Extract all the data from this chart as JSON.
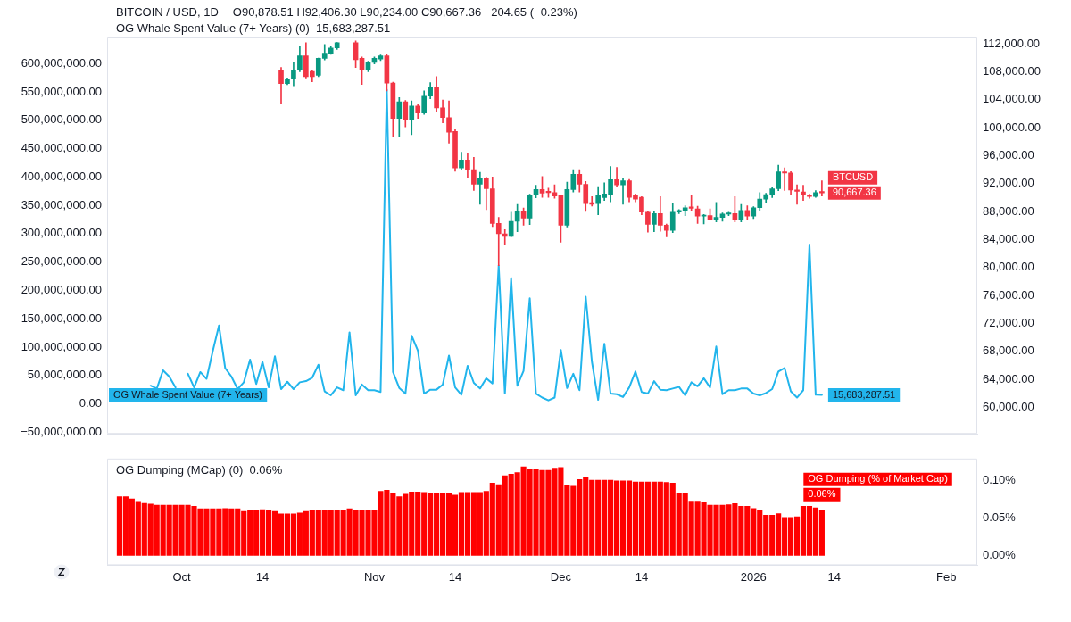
{
  "chart_data": [
    {
      "type": "candlestick",
      "title": "BITCOIN / USD, 1D",
      "annotations": [
        "O90,878.51 H92,406.30 L90,234.00 C90,667.36 −204.65 (−0.23%)",
        "OG Whale Spent Value (7+ Years) (0)  15,683,287.51"
      ],
      "x": [
        "2025-09-26",
        "2025-09-27",
        "2025-09-28",
        "2025-09-29",
        "2025-09-30",
        "2025-10-01",
        "2025-10-02",
        "2025-10-03",
        "2025-10-04",
        "2025-10-05",
        "2025-10-06",
        "2025-10-07",
        "2025-10-08",
        "2025-10-09",
        "2025-10-10",
        "2025-10-11",
        "2025-10-12",
        "2025-10-13",
        "2025-10-14",
        "2025-10-15",
        "2025-10-16",
        "2025-10-17",
        "2025-10-18",
        "2025-10-19",
        "2025-10-20",
        "2025-10-21",
        "2025-10-22",
        "2025-10-23",
        "2025-10-24",
        "2025-10-25",
        "2025-10-26",
        "2025-10-27",
        "2025-10-28",
        "2025-10-29",
        "2025-10-30",
        "2025-10-31",
        "2025-11-01",
        "2025-11-02",
        "2025-11-03",
        "2025-11-04",
        "2025-11-05",
        "2025-11-06",
        "2025-11-07",
        "2025-11-08",
        "2025-11-09",
        "2025-11-10",
        "2025-11-11",
        "2025-11-12",
        "2025-11-13",
        "2025-11-14",
        "2025-11-15",
        "2025-11-16",
        "2025-11-17",
        "2025-11-18",
        "2025-11-19",
        "2025-11-20",
        "2025-11-21",
        "2025-11-22",
        "2025-11-23",
        "2025-11-24",
        "2025-11-25",
        "2025-11-26",
        "2025-11-27",
        "2025-11-28",
        "2025-11-29",
        "2025-11-30",
        "2025-12-01",
        "2025-12-02",
        "2025-12-03",
        "2025-12-04",
        "2025-12-05",
        "2025-12-06",
        "2025-12-07",
        "2025-12-08",
        "2025-12-09",
        "2025-12-10",
        "2025-12-11",
        "2025-12-12",
        "2025-12-13",
        "2025-12-14",
        "2025-12-15",
        "2025-12-16",
        "2025-12-17",
        "2025-12-18",
        "2025-12-19",
        "2025-12-20",
        "2025-12-21",
        "2025-12-22",
        "2025-12-23",
        "2025-12-24",
        "2025-12-25",
        "2025-12-26",
        "2025-12-27",
        "2025-12-28",
        "2025-12-29",
        "2025-12-30",
        "2025-12-31",
        "2026-01-01",
        "2026-01-02",
        "2026-01-03",
        "2026-01-04",
        "2026-01-05",
        "2026-01-06",
        "2026-01-07",
        "2026-01-08",
        "2026-01-09",
        "2026-01-10",
        "2026-01-11",
        "2026-01-12"
      ],
      "series": [
        {
          "name": "BTCUSD",
          "axis": "y2",
          "ohlc": [
            null,
            null,
            null,
            null,
            null,
            null,
            null,
            null,
            null,
            null,
            null,
            null,
            null,
            null,
            null,
            null,
            null,
            null,
            null,
            null,
            null,
            [
              108233,
              108606,
              103386,
              106294
            ],
            [
              106294,
              107100,
              106150,
              106928
            ],
            [
              107040,
              109352,
              105996,
              108233
            ],
            [
              108233,
              111590,
              108000,
              110284
            ],
            [
              110284,
              112149,
              107100,
              107301
            ],
            [
              108047,
              108200,
              106555,
              107301
            ],
            [
              107488,
              109950,
              107300,
              109911
            ],
            [
              109911,
              111900,
              109700,
              110657
            ],
            [
              110657,
              111600,
              110500,
              111403
            ],
            [
              111403,
              112200,
              111200,
              112149
            ],
            null,
            null,
            [
              112149,
              112400,
              108606,
              109725
            ],
            [
              109911,
              110100,
              106182,
              108233
            ],
            [
              108233,
              109500,
              108000,
              109352
            ],
            [
              109352,
              110100,
              109100,
              109911
            ],
            [
              109800,
              110400,
              109600,
              110284
            ],
            [
              110284,
              110500,
              105250,
              106369
            ],
            [
              106369,
              106500,
              98724,
              101335
            ],
            [
              101335,
              104318,
              98724,
              103684
            ],
            [
              103684,
              103900,
              100104,
              101074
            ],
            [
              101074,
              103833,
              98985,
              103087
            ],
            [
              103087,
              103300,
              101335,
              102080
            ],
            [
              102080,
              105250,
              101900,
              104504
            ],
            [
              104504,
              106443,
              104131,
              105735
            ],
            [
              105735,
              107301,
              102267,
              102826
            ],
            [
              102826,
              103945,
              100701,
              101446
            ],
            [
              101446,
              103833,
              97792,
              99358
            ],
            [
              99470,
              99700,
              93764,
              94249
            ],
            [
              94249,
              96487,
              94063,
              95368
            ],
            [
              95368,
              96300,
              92869,
              94063
            ],
            [
              93990,
              95743,
              91007,
              91902
            ],
            [
              91902,
              93617,
              89031,
              92760
            ],
            [
              92760,
              92900,
              88285,
              91268
            ],
            [
              91268,
              92946,
              85861,
              86308
            ],
            [
              86308,
              87166,
              80267,
              84817
            ],
            [
              84817,
              85413,
              83325,
              84444
            ],
            [
              84444,
              87912,
              84370,
              86607
            ],
            [
              86607,
              89031,
              85115,
              88098
            ],
            [
              88098,
              88500,
              86048,
              87054
            ],
            [
              87054,
              90500,
              86122,
              90336
            ],
            [
              90336,
              91753,
              89963,
              91156
            ],
            [
              91156,
              93021,
              90037,
              90634
            ],
            [
              90900,
              91343,
              90037,
              90709
            ],
            [
              90709,
              91827,
              89900,
              90224
            ],
            [
              90261,
              90400,
              83624,
              86048
            ],
            [
              86048,
              92200,
              85800,
              91156
            ],
            [
              91156,
              93990,
              90800,
              93319
            ],
            [
              93319,
              93990,
              90783,
              91902
            ],
            [
              91902,
              92300,
              88024,
              89142
            ],
            [
              89291,
              90149,
              88800,
              89031
            ],
            [
              89142,
              91566,
              87539,
              90261
            ],
            [
              90000,
              92126,
              89590,
              90522
            ],
            [
              90410,
              94438,
              89400,
              92573
            ],
            [
              92573,
              94326,
              91529,
              91827
            ],
            [
              91827,
              92760,
              89031,
              92387
            ],
            [
              92387,
              92600,
              89404,
              90037
            ],
            [
              90261,
              90522,
              89404,
              89776
            ],
            [
              90037,
              90149,
              87539,
              87912
            ],
            [
              87912,
              88100,
              85041,
              86159
            ],
            [
              86159,
              88000,
              85115,
              87725
            ],
            [
              87725,
              90149,
              85190,
              86048
            ],
            [
              86048,
              86200,
              84370,
              85302
            ],
            [
              85302,
              89142,
              85000,
              87912
            ],
            [
              87912,
              88300,
              87700,
              88173
            ],
            [
              88173,
              88844,
              87427,
              88546
            ],
            [
              88658,
              90336,
              88100,
              88471
            ],
            [
              88397,
              88769,
              86308,
              87352
            ],
            [
              87352,
              87600,
              86234,
              87427
            ],
            [
              87427,
              88397,
              86800,
              86905
            ],
            [
              86905,
              89292,
              86532,
              87166
            ],
            [
              87166,
              87800,
              86600,
              87651
            ],
            [
              87651,
              87900,
              87400,
              87800
            ],
            [
              87725,
              90149,
              86532,
              86905
            ],
            [
              86905,
              89031,
              86532,
              88173
            ],
            [
              88173,
              88844,
              86800,
              87352
            ],
            [
              87352,
              88700,
              87000,
              88546
            ],
            [
              88546,
              90709,
              88173,
              89776
            ],
            [
              89776,
              90600,
              89217,
              90410
            ],
            [
              90410,
              91529,
              90000,
              91268
            ],
            [
              91268,
              94624,
              91000,
              93692
            ],
            [
              93692,
              94251,
              91007,
              93505
            ],
            [
              93505,
              93700,
              90410,
              91082
            ],
            [
              91082,
              91827,
              89031,
              90895
            ],
            [
              90820,
              91753,
              89590,
              90336
            ],
            [
              90336,
              90500,
              89900,
              90149
            ],
            [
              90149,
              91007,
              90037,
              90709
            ],
            [
              90878.51,
              92406.3,
              90234.0,
              90667.36
            ]
          ],
          "colors": [
            null,
            null,
            null,
            null,
            null,
            null,
            null,
            null,
            null,
            null,
            null,
            null,
            null,
            null,
            null,
            null,
            null,
            null,
            null,
            null,
            null,
            "#f23645",
            "#089981",
            "#089981",
            "#089981",
            "#f23645",
            "#f23645",
            "#089981",
            "#089981",
            "#089981",
            "#089981",
            null,
            null,
            "#f23645",
            "#f23645",
            "#089981",
            "#089981",
            "#089981",
            "#f23645",
            "#f23645",
            "#089981",
            "#f23645",
            "#089981",
            "#f23645",
            "#089981",
            "#089981",
            "#f23645",
            "#f23645",
            "#f23645",
            "#f23645",
            "#089981",
            "#f23645",
            "#f23645",
            "#089981",
            "#f23645",
            "#f23645",
            "#f23645",
            "#f23645",
            "#089981",
            "#089981",
            "#f23645",
            "#089981",
            "#089981",
            "#f23645",
            "#f23645",
            "#f23645",
            "#f23645",
            "#089981",
            "#089981",
            "#f23645",
            "#f23645",
            "#f23645",
            "#089981",
            "#089981",
            "#089981",
            "#f23645",
            "#089981",
            "#f23645",
            "#f23645",
            "#f23645",
            "#f23645",
            "#089981",
            "#f23645",
            "#f23645",
            "#089981",
            "#089981",
            "#089981",
            "#f23645",
            "#f23645",
            "#089981",
            "#f23645",
            "#089981",
            "#089981",
            "#089981",
            "#f23645",
            "#089981",
            "#f23645",
            "#089981",
            "#089981",
            "#089981",
            "#089981",
            "#089981",
            "#f23645",
            "#f23645",
            "#f23645",
            "#f23645",
            "#f23645",
            "#089981",
            "#f23645"
          ],
          "value_labels": [
            null,
            null,
            null,
            null,
            null,
            null,
            null,
            null,
            null,
            null,
            null,
            null,
            null,
            null,
            null,
            null,
            null,
            null,
            null,
            null,
            null,
            null,
            null,
            null,
            null,
            null,
            null,
            null,
            null,
            null,
            null,
            null,
            null,
            null,
            null,
            null,
            null,
            null,
            null,
            null,
            null,
            null,
            null,
            null,
            null,
            null,
            null,
            null,
            null,
            null,
            null,
            null,
            null,
            null,
            null,
            null,
            null,
            null,
            null,
            null,
            null,
            null,
            null,
            null,
            null,
            null,
            null,
            null,
            null,
            null,
            null,
            null,
            null,
            null,
            null,
            null,
            null,
            null,
            null,
            null,
            null,
            null,
            null,
            null,
            null,
            null,
            null,
            null,
            null,
            null,
            null,
            null,
            null,
            null,
            null,
            null,
            null,
            null,
            null,
            null,
            null,
            null,
            null,
            null,
            null,
            null,
            null,
            null,
            "90,667.36"
          ]
        },
        {
          "type": "line",
          "name": "OG Whale Spent Value (7+ Years)",
          "axis": "y",
          "color": "#22b5ec",
          "values": [
            32000000,
            27000000,
            59000000,
            48000000,
            29000000,
            null,
            53000000,
            29000000,
            56000000,
            44000000,
            93000000,
            138000000,
            63000000,
            48000000,
            26000000,
            38000000,
            78000000,
            35000000,
            74000000,
            29000000,
            84000000,
            26000000,
            39000000,
            26000000,
            38000000,
            40000000,
            46000000,
            69000000,
            22000000,
            15000000,
            29000000,
            24000000,
            126000000,
            15000000,
            34000000,
            24000000,
            24000000,
            21000000,
            554000000,
            56000000,
            28000000,
            18000000,
            120000000,
            94000000,
            18000000,
            25000000,
            25000000,
            34000000,
            85000000,
            29000000,
            16000000,
            67000000,
            37000000,
            27000000,
            45000000,
            36000000,
            244000000,
            18000000,
            222000000,
            32000000,
            58000000,
            186000000,
            18000000,
            11000000,
            6000000,
            11000000,
            95000000,
            28000000,
            53000000,
            24000000,
            189000000,
            74000000,
            7000000,
            106000000,
            18000000,
            17000000,
            12000000,
            29000000,
            57000000,
            21000000,
            18000000,
            40000000,
            25000000,
            24000000,
            27000000,
            30000000,
            15000000,
            38000000,
            31000000,
            45000000,
            29000000,
            101000000,
            17000000,
            24000000,
            24000000,
            27000000,
            27000000,
            18000000,
            15000000,
            19000000,
            26000000,
            57000000,
            63000000,
            22000000,
            11000000,
            24000000,
            281000000,
            16000000,
            15683287.51
          ],
          "value_labels": [
            null,
            null,
            null,
            null,
            null,
            null,
            null,
            null,
            null,
            null,
            null,
            null,
            null,
            null,
            null,
            null,
            null,
            null,
            null,
            null,
            null,
            null,
            null,
            null,
            null,
            null,
            null,
            null,
            null,
            null,
            null,
            null,
            null,
            null,
            null,
            null,
            null,
            null,
            null,
            null,
            null,
            null,
            null,
            null,
            null,
            null,
            null,
            null,
            null,
            null,
            null,
            null,
            null,
            null,
            null,
            null,
            null,
            null,
            null,
            null,
            null,
            null,
            null,
            null,
            null,
            null,
            null,
            null,
            null,
            null,
            null,
            null,
            null,
            null,
            null,
            null,
            null,
            null,
            null,
            null,
            null,
            null,
            null,
            null,
            null,
            null,
            null,
            null,
            null,
            null,
            null,
            null,
            null,
            null,
            null,
            null,
            null,
            null,
            null,
            null,
            null,
            null,
            null,
            null,
            null,
            null,
            null,
            null,
            "15,683,287.51"
          ]
        }
      ],
      "xlim": [
        "2025-09-19",
        "2026-02-06"
      ],
      "ylim": [
        -53000000,
        646000000
      ],
      "yticks": [
        {
          "value": -50000000,
          "label": "−50,000,000.00"
        },
        {
          "value": 0,
          "label": "0.00"
        },
        {
          "value": 50000000,
          "label": "50,000,000.00"
        },
        {
          "value": 100000000,
          "label": "100,000,000.00"
        },
        {
          "value": 150000000,
          "label": "150,000,000.00"
        },
        {
          "value": 200000000,
          "label": "200,000,000.00"
        },
        {
          "value": 250000000,
          "label": "250,000,000.00"
        },
        {
          "value": 300000000,
          "label": "300,000,000.00"
        },
        {
          "value": 350000000,
          "label": "350,000,000.00"
        },
        {
          "value": 400000000,
          "label": "400,000,000.00"
        },
        {
          "value": 450000000,
          "label": "450,000,000.00"
        },
        {
          "value": 500000000,
          "label": "500,000,000.00"
        },
        {
          "value": 550000000,
          "label": "550,000,000.00"
        },
        {
          "value": 600000000,
          "label": "600,000,000.00"
        }
      ],
      "y2lim": [
        56200,
        112900
      ],
      "y2ticks": [
        {
          "value": 60000,
          "label": "60,000.00"
        },
        {
          "value": 64000,
          "label": "64,000.00"
        },
        {
          "value": 68000,
          "label": "68,000.00"
        },
        {
          "value": 72000,
          "label": "72,000.00"
        },
        {
          "value": 76000,
          "label": "76,000.00"
        },
        {
          "value": 80000,
          "label": "80,000.00"
        },
        {
          "value": 84000,
          "label": "84,000.00"
        },
        {
          "value": 88000,
          "label": "88,000.00"
        },
        {
          "value": 92000,
          "label": "92,000.00"
        },
        {
          "value": 96000,
          "label": "96,000.00"
        },
        {
          "value": 100000,
          "label": "100,000.00"
        },
        {
          "value": 104000,
          "label": "104,000.00"
        },
        {
          "value": 108000,
          "label": "108,000.00"
        },
        {
          "value": 112000,
          "label": "112,000.00"
        }
      ],
      "tick_labels": "y",
      "marker": "none"
    },
    {
      "type": "bar",
      "annotations": [
        "OG Dumping (MCap) (0)  0.06%"
      ],
      "x": [
        "2025-09-21",
        "2025-09-22",
        "2025-09-23",
        "2025-09-24",
        "2025-09-25",
        "2025-09-26",
        "2025-09-27",
        "2025-09-28",
        "2025-09-29",
        "2025-09-30",
        "2025-10-01",
        "2025-10-02",
        "2025-10-03",
        "2025-10-04",
        "2025-10-05",
        "2025-10-06",
        "2025-10-07",
        "2025-10-08",
        "2025-10-09",
        "2025-10-10",
        "2025-10-11",
        "2025-10-12",
        "2025-10-13",
        "2025-10-14",
        "2025-10-15",
        "2025-10-16",
        "2025-10-17",
        "2025-10-18",
        "2025-10-19",
        "2025-10-20",
        "2025-10-21",
        "2025-10-22",
        "2025-10-23",
        "2025-10-24",
        "2025-10-25",
        "2025-10-26",
        "2025-10-27",
        "2025-10-28",
        "2025-10-29",
        "2025-10-30",
        "2025-10-31",
        "2025-11-01",
        "2025-11-02",
        "2025-11-03",
        "2025-11-04",
        "2025-11-05",
        "2025-11-06",
        "2025-11-07",
        "2025-11-08",
        "2025-11-09",
        "2025-11-10",
        "2025-11-11",
        "2025-11-12",
        "2025-11-13",
        "2025-11-14",
        "2025-11-15",
        "2025-11-16",
        "2025-11-17",
        "2025-11-18",
        "2025-11-19",
        "2025-11-20",
        "2025-11-21",
        "2025-11-22",
        "2025-11-23",
        "2025-11-24",
        "2025-11-25",
        "2025-11-26",
        "2025-11-27",
        "2025-11-28",
        "2025-11-29",
        "2025-11-30",
        "2025-12-01",
        "2025-12-02",
        "2025-12-03",
        "2025-12-04",
        "2025-12-05",
        "2025-12-06",
        "2025-12-07",
        "2025-12-08",
        "2025-12-09",
        "2025-12-10",
        "2025-12-11",
        "2025-12-12",
        "2025-12-13",
        "2025-12-14",
        "2025-12-15",
        "2025-12-16",
        "2025-12-17",
        "2025-12-18",
        "2025-12-19",
        "2025-12-20",
        "2025-12-21",
        "2025-12-22",
        "2025-12-23",
        "2025-12-24",
        "2025-12-25",
        "2025-12-26",
        "2025-12-27",
        "2025-12-28",
        "2025-12-29",
        "2025-12-30",
        "2025-12-31",
        "2026-01-01",
        "2026-01-02",
        "2026-01-03",
        "2026-01-04",
        "2026-01-05",
        "2026-01-06",
        "2026-01-07",
        "2026-01-08",
        "2026-01-09",
        "2026-01-10",
        "2026-01-11",
        "2026-01-12"
      ],
      "series": [
        {
          "name": "OG Dumping (% of Market Cap)",
          "axis": "y2",
          "color": "#ff0000",
          "values": [
            0.079,
            0.079,
            0.076,
            0.0725,
            0.07,
            0.069,
            0.0675,
            0.0675,
            0.0675,
            0.0675,
            0.0675,
            0.0675,
            0.066,
            0.0626,
            0.0626,
            0.0626,
            0.0626,
            0.063,
            0.0626,
            0.0626,
            0.059,
            0.061,
            0.061,
            0.0615,
            0.061,
            0.059,
            0.0558,
            0.0558,
            0.0558,
            0.057,
            0.059,
            0.0605,
            0.0605,
            0.0605,
            0.0605,
            0.0605,
            0.0605,
            0.0626,
            0.061,
            0.061,
            0.061,
            0.061,
            0.086,
            0.0875,
            0.084,
            0.079,
            0.082,
            0.085,
            0.085,
            0.0846,
            0.0835,
            0.084,
            0.084,
            0.084,
            0.081,
            0.0846,
            0.0846,
            0.0846,
            0.0846,
            0.086,
            0.097,
            0.095,
            0.107,
            0.109,
            0.111,
            0.119,
            0.115,
            0.115,
            0.114,
            0.114,
            0.117,
            0.118,
            0.0945,
            0.093,
            0.102,
            0.105,
            0.101,
            0.101,
            0.101,
            0.101,
            0.1,
            0.1,
            0.1,
            0.0985,
            0.0985,
            0.0985,
            0.0985,
            0.0985,
            0.098,
            0.097,
            0.0835,
            0.0835,
            0.073,
            0.073,
            0.071,
            0.0675,
            0.0675,
            0.0675,
            0.068,
            0.0695,
            0.066,
            0.066,
            0.063,
            0.061,
            0.054,
            0.054,
            0.056,
            0.051,
            0.051,
            0.052,
            0.066,
            0.066,
            0.064,
            0.06
          ],
          "value_labels": [
            null,
            null,
            null,
            null,
            null,
            null,
            null,
            null,
            null,
            null,
            null,
            null,
            null,
            null,
            null,
            null,
            null,
            null,
            null,
            null,
            null,
            null,
            null,
            null,
            null,
            null,
            null,
            null,
            null,
            null,
            null,
            null,
            null,
            null,
            null,
            null,
            null,
            null,
            null,
            null,
            null,
            null,
            null,
            null,
            null,
            null,
            null,
            null,
            null,
            null,
            null,
            null,
            null,
            null,
            null,
            null,
            null,
            null,
            null,
            null,
            null,
            null,
            null,
            null,
            null,
            null,
            null,
            null,
            null,
            null,
            null,
            null,
            null,
            null,
            null,
            null,
            null,
            null,
            null,
            null,
            null,
            null,
            null,
            null,
            null,
            null,
            null,
            null,
            null,
            null,
            null,
            null,
            null,
            null,
            null,
            null,
            null,
            null,
            null,
            null,
            null,
            null,
            null,
            null,
            null,
            null,
            null,
            null,
            null,
            null,
            null,
            null,
            null,
            "0.06%"
          ]
        }
      ],
      "xlim": [
        "2025-09-19",
        "2026-02-06"
      ],
      "xticks": [
        {
          "value": "2025-10-01",
          "label": "Oct"
        },
        {
          "value": "2025-10-14",
          "label": "14"
        },
        {
          "value": "2025-11-01",
          "label": "Nov"
        },
        {
          "value": "2025-11-14",
          "label": "14"
        },
        {
          "value": "2025-12-01",
          "label": "Dec"
        },
        {
          "value": "2025-12-14",
          "label": "14"
        },
        {
          "value": "2026-01-01",
          "label": "2026"
        },
        {
          "value": "2026-01-14",
          "label": "14"
        },
        {
          "value": "2026-02-01",
          "label": "Feb"
        }
      ],
      "y2lim": [
        -0.013,
        0.13
      ],
      "y2ticks": [
        {
          "value": 0,
          "label": "0.00%"
        },
        {
          "value": 0.05,
          "label": "0.05%"
        },
        {
          "value": 0.1,
          "label": "0.10%"
        }
      ]
    }
  ]
}
